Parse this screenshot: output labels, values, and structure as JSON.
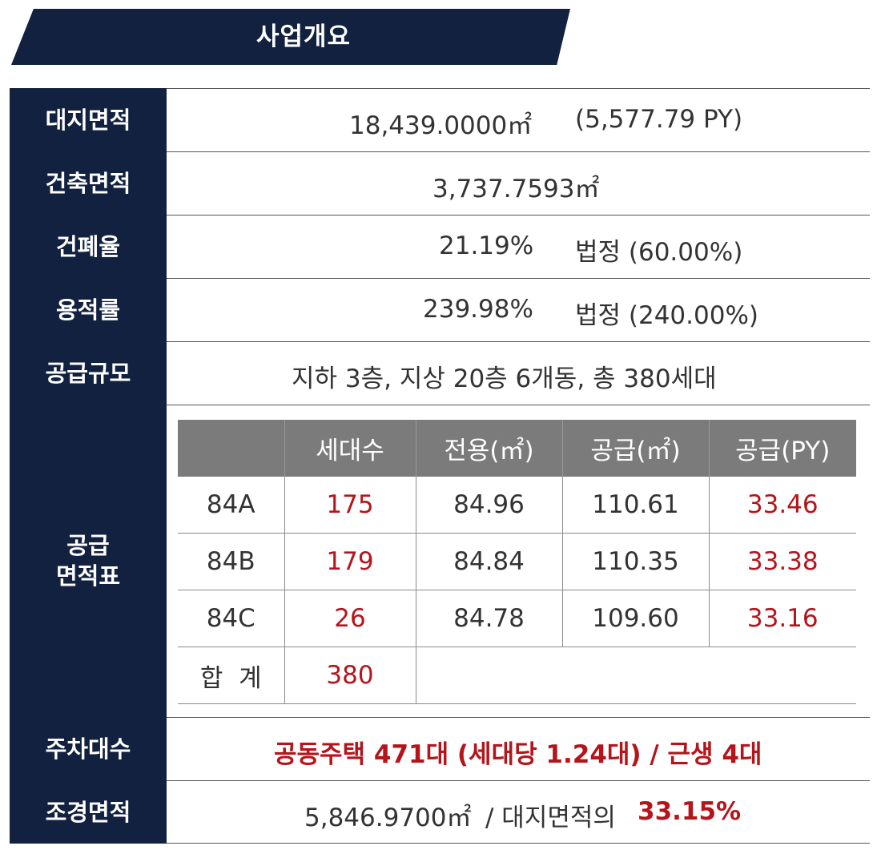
{
  "banner": {
    "title": "사업개요"
  },
  "colors": {
    "navy": "#12213f",
    "header_gray": "#7b7b7b",
    "accent_red": "#b3151b"
  },
  "rows": {
    "site_area": {
      "label": "대지면적",
      "value_m2": "18,439.0000㎡",
      "value_py": "(5,577.79 PY)"
    },
    "building_area": {
      "label": "건축면적",
      "value_m2": "3,737.7593㎡"
    },
    "coverage_ratio": {
      "label": "건폐율",
      "value": "21.19%",
      "legal": "법정 (60.00%)"
    },
    "floor_area_ratio": {
      "label": "용적률",
      "value": "239.98%",
      "legal": "법정 (240.00%)"
    },
    "supply_scale": {
      "label": "공급규모",
      "value": "지하 3층, 지상 20층 6개동, 총 380세대"
    },
    "supply_area_table": {
      "label_line1": "공급",
      "label_line2": "면적표",
      "columns": [
        "",
        "세대수",
        "전용(㎡)",
        "공급(㎡)",
        "공급(PY)"
      ],
      "rows": [
        {
          "type": "84A",
          "units": "175",
          "exclusive": "84.96",
          "supply_m2": "110.61",
          "supply_py": "33.46"
        },
        {
          "type": "84B",
          "units": "179",
          "exclusive": "84.84",
          "supply_m2": "110.35",
          "supply_py": "33.38"
        },
        {
          "type": "84C",
          "units": "26",
          "exclusive": "84.78",
          "supply_m2": "109.60",
          "supply_py": "33.16"
        }
      ],
      "total": {
        "label": "합  계",
        "units": "380"
      }
    },
    "parking": {
      "label": "주차대수",
      "value": "공동주택 471대 (세대당 1.24대) / 근생 4대"
    },
    "landscape_area": {
      "label": "조경면적",
      "value_m2": "5,846.9700㎡",
      "separator": "/ 대지면적의",
      "percent": "33.15%"
    }
  }
}
